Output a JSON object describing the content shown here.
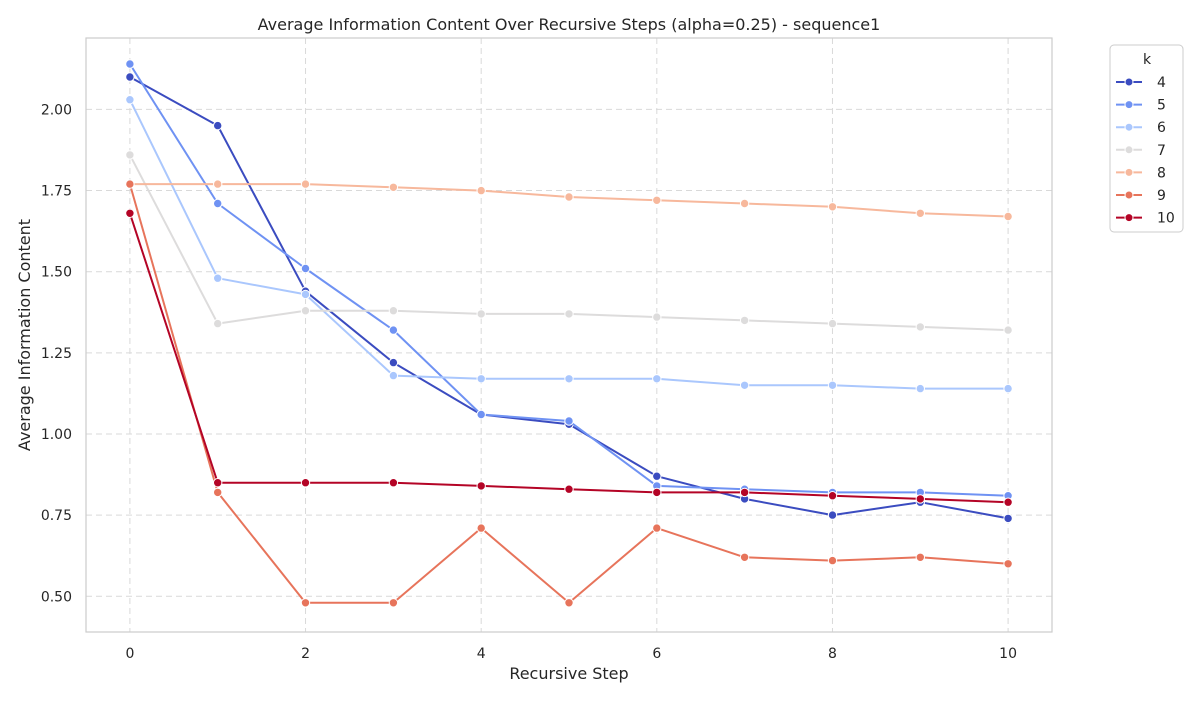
{
  "chart_data": {
    "type": "line",
    "title": "Average Information Content Over Recursive Steps (alpha=0.25) - sequence1",
    "xlabel": "Recursive Step",
    "ylabel": "Average Information Content",
    "x": [
      0,
      1,
      2,
      3,
      4,
      5,
      6,
      7,
      8,
      9,
      10
    ],
    "xlim": [
      -0.5,
      10.5
    ],
    "ylim": [
      0.39,
      2.22
    ],
    "xticks": [
      0,
      2,
      4,
      6,
      8,
      10
    ],
    "xtick_labels": [
      "0",
      "2",
      "4",
      "6",
      "8",
      "10"
    ],
    "yticks": [
      0.5,
      0.75,
      1.0,
      1.25,
      1.5,
      1.75,
      2.0
    ],
    "ytick_labels": [
      "0.50",
      "0.75",
      "1.00",
      "1.25",
      "1.50",
      "1.75",
      "2.00"
    ],
    "grid": true,
    "legend": {
      "title": "k",
      "position": "outside-top-right"
    },
    "series": [
      {
        "name": "4",
        "color": "#3b4cc0",
        "values": [
          2.1,
          1.95,
          1.44,
          1.22,
          1.06,
          1.03,
          0.87,
          0.8,
          0.75,
          0.79,
          0.74
        ]
      },
      {
        "name": "5",
        "color": "#6f92f3",
        "values": [
          2.14,
          1.71,
          1.51,
          1.32,
          1.06,
          1.04,
          0.84,
          0.83,
          0.82,
          0.82,
          0.81
        ]
      },
      {
        "name": "6",
        "color": "#aac7fd",
        "values": [
          2.03,
          1.48,
          1.43,
          1.18,
          1.17,
          1.17,
          1.17,
          1.15,
          1.15,
          1.14,
          1.14
        ]
      },
      {
        "name": "7",
        "color": "#dddcdc",
        "values": [
          1.86,
          1.34,
          1.38,
          1.38,
          1.37,
          1.37,
          1.36,
          1.35,
          1.34,
          1.33,
          1.32
        ]
      },
      {
        "name": "8",
        "color": "#f7b89c",
        "values": [
          1.77,
          1.77,
          1.77,
          1.76,
          1.75,
          1.73,
          1.72,
          1.71,
          1.7,
          1.68,
          1.67
        ]
      },
      {
        "name": "9",
        "color": "#e7745b",
        "values": [
          1.77,
          0.82,
          0.48,
          0.48,
          0.71,
          0.48,
          0.71,
          0.62,
          0.61,
          0.62,
          0.6
        ]
      },
      {
        "name": "10",
        "color": "#b40426",
        "values": [
          1.68,
          0.85,
          0.85,
          0.85,
          0.84,
          0.83,
          0.82,
          0.82,
          0.81,
          0.8,
          0.79
        ]
      }
    ]
  }
}
